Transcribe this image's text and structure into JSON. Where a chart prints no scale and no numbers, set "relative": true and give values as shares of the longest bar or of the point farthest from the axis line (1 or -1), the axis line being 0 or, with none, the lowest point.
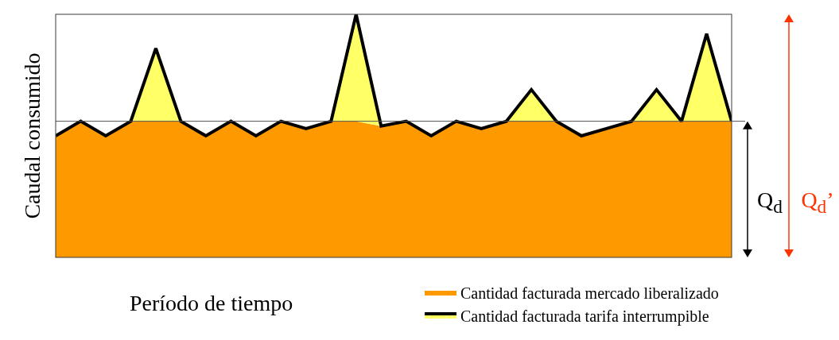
{
  "chart_data": {
    "type": "area",
    "relative": true,
    "xlabel": "Período de tiempo",
    "ylabel": "Caudal consumido",
    "legend": "bottom right",
    "categories": [
      null,
      null,
      null,
      null,
      null,
      null,
      null,
      null,
      null,
      null,
      null,
      null,
      null,
      null,
      null,
      null,
      null,
      null,
      null,
      null,
      null,
      null,
      null,
      null,
      null,
      null,
      null,
      null
    ],
    "series": [
      {
        "name": "Cantidad facturada mercado liberalizado",
        "color": "#ff9900",
        "values": [
          0.5,
          0.56,
          0.5,
          0.56,
          0.56,
          0.56,
          0.5,
          0.56,
          0.5,
          0.56,
          0.53,
          0.56,
          0.56,
          0.54,
          0.56,
          0.5,
          0.56,
          0.53,
          0.56,
          0.56,
          0.56,
          0.5,
          0.53,
          0.56,
          0.56,
          0.56,
          0.56,
          0.56
        ]
      },
      {
        "name": "Cantidad facturada tarifa interrumpible",
        "color": "#ffff66",
        "values": [
          0.5,
          0.56,
          0.5,
          0.56,
          0.86,
          0.56,
          0.5,
          0.56,
          0.5,
          0.56,
          0.53,
          0.56,
          1.0,
          0.54,
          0.56,
          0.5,
          0.56,
          0.53,
          0.56,
          0.69,
          0.56,
          0.5,
          0.53,
          0.56,
          0.69,
          0.56,
          0.92,
          0.56
        ]
      }
    ],
    "ref_lines": [
      {
        "axis": "y",
        "value": 0.56,
        "color": "#505050"
      }
    ],
    "annotations": [
      "Q$_{d}$",
      "Q$_{d}$’"
    ]
  }
}
